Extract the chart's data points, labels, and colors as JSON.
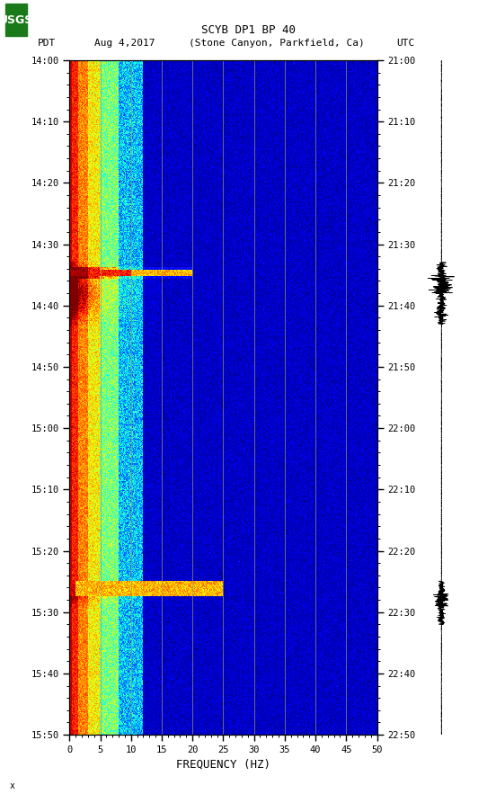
{
  "title_line1": "SCYB DP1 BP 40",
  "title_line2": "PDT   Aug 4,2017   (Stone Canyon, Parkfield, Ca)         UTC",
  "xlabel": "FREQUENCY (HZ)",
  "pdt_ticks": [
    "14:00",
    "14:10",
    "14:20",
    "14:30",
    "14:40",
    "14:50",
    "15:00",
    "15:10",
    "15:20",
    "15:30",
    "15:40",
    "15:50"
  ],
  "utc_ticks": [
    "21:00",
    "21:10",
    "21:20",
    "21:30",
    "21:40",
    "21:50",
    "22:00",
    "22:10",
    "22:20",
    "22:30",
    "22:40",
    "22:50"
  ],
  "freq_ticks": [
    0,
    5,
    10,
    15,
    20,
    25,
    30,
    35,
    40,
    45,
    50
  ],
  "freq_gridlines": [
    5,
    10,
    15,
    20,
    25,
    30,
    35,
    40,
    45
  ],
  "colormap": "jet",
  "background_color": "#ffffff",
  "logo_color": "#1a7a1a",
  "fig_width": 5.52,
  "fig_height": 8.93,
  "n_time": 660,
  "n_freq": 500,
  "event1_tstart": 198,
  "event1_tend": 260,
  "event2_tstart": 510,
  "event2_tend": 555,
  "vmin": -60,
  "vmax": 20
}
